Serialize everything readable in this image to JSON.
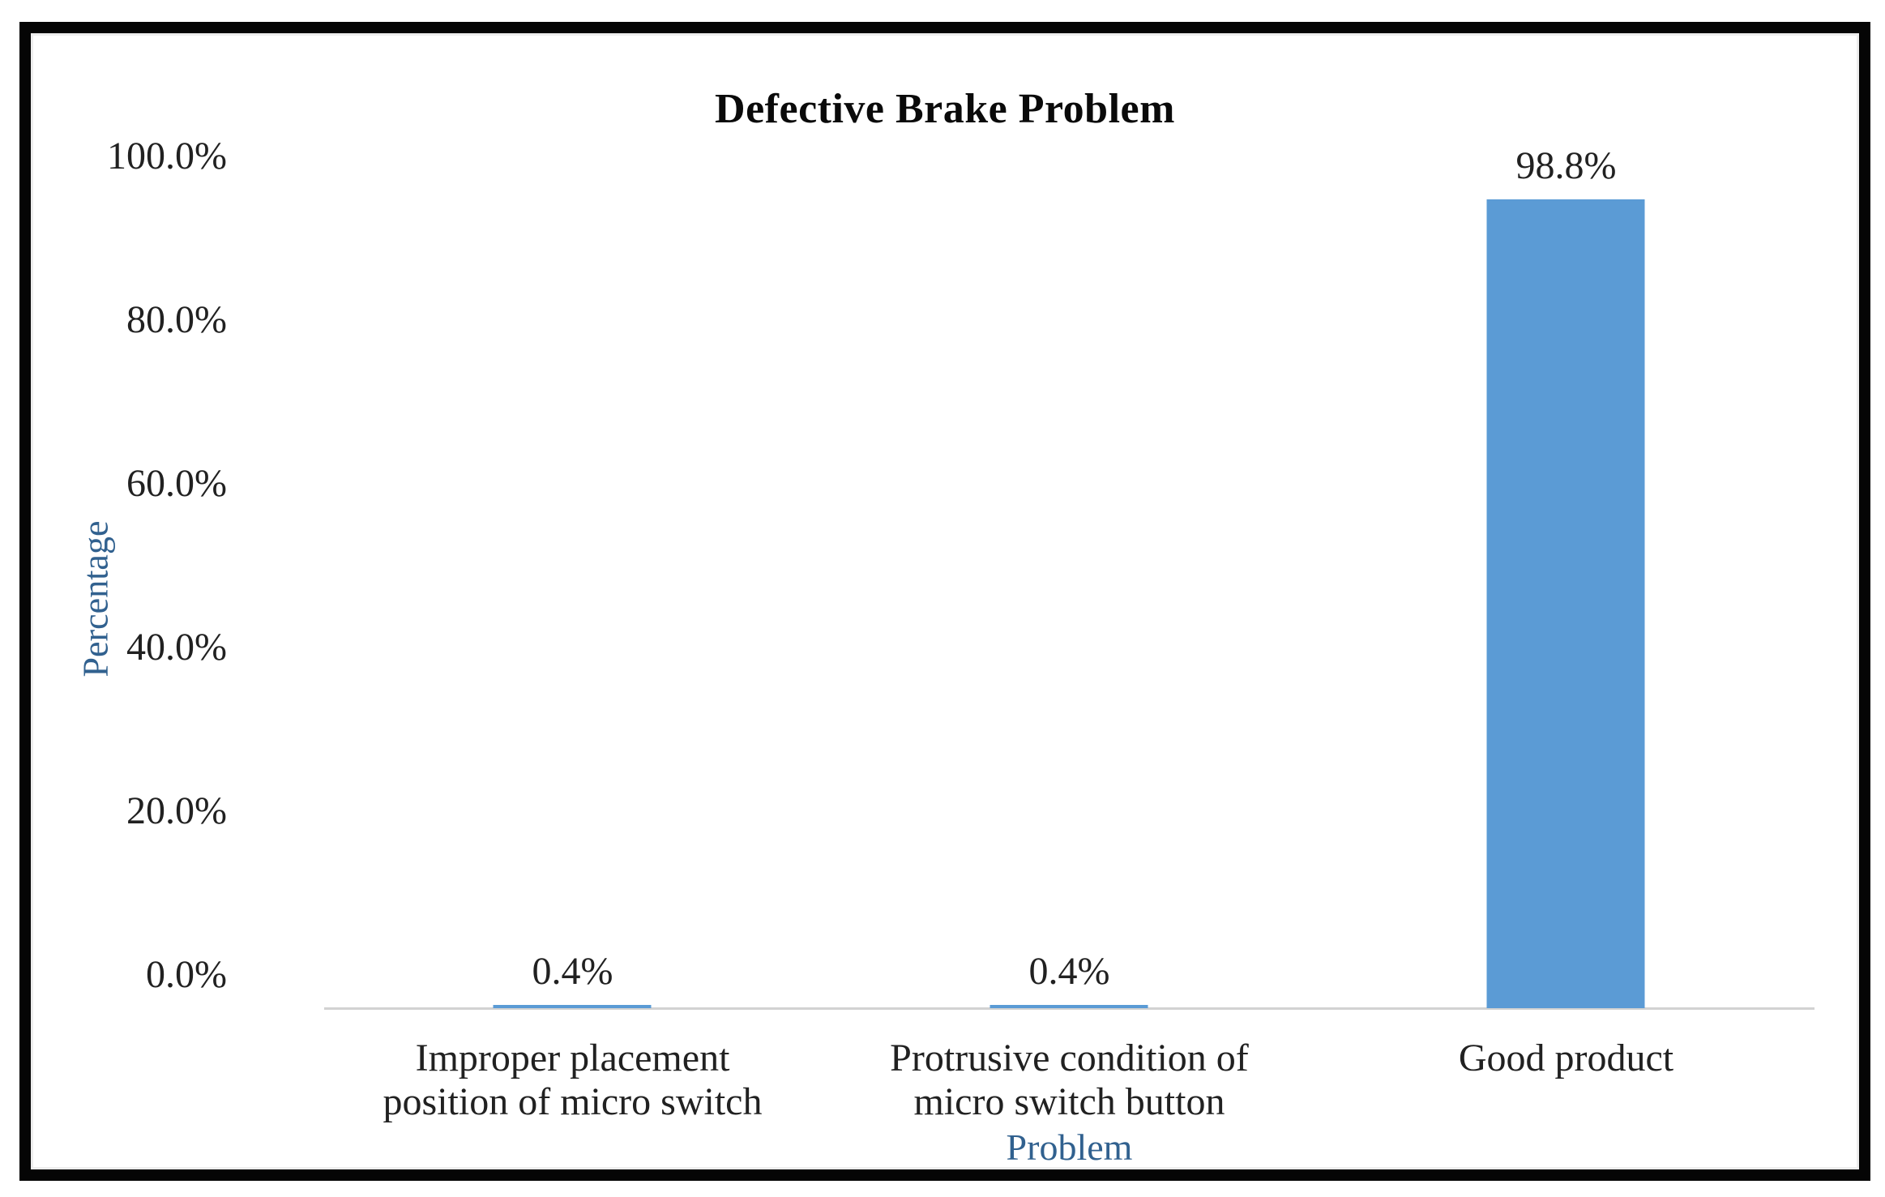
{
  "chart_data": {
    "type": "bar",
    "title": "Defective Brake Problem",
    "xlabel": "Problem",
    "ylabel": "Percentage",
    "categories": [
      "Improper placement\nposition of micro switch",
      "Protrusive condition of\nmicro switch button",
      "Good product"
    ],
    "values": [
      0.4,
      0.4,
      98.8
    ],
    "data_labels": [
      "0.4%",
      "0.4%",
      "98.8%"
    ],
    "ytick_labels": [
      "100.0%",
      "80.0%",
      "60.0%",
      "40.0%",
      "20.0%",
      "0.0%"
    ],
    "ylim": [
      0,
      100
    ],
    "ytick_step": 20,
    "grid": false,
    "legend": "none",
    "bar_color": "#5B9BD5",
    "axis_line_color": "#D2D2D2",
    "axis_title_color": "#31618F",
    "text_color": "#212121",
    "title_color": "#0a0a0a",
    "frame_border_color": "#050505"
  }
}
